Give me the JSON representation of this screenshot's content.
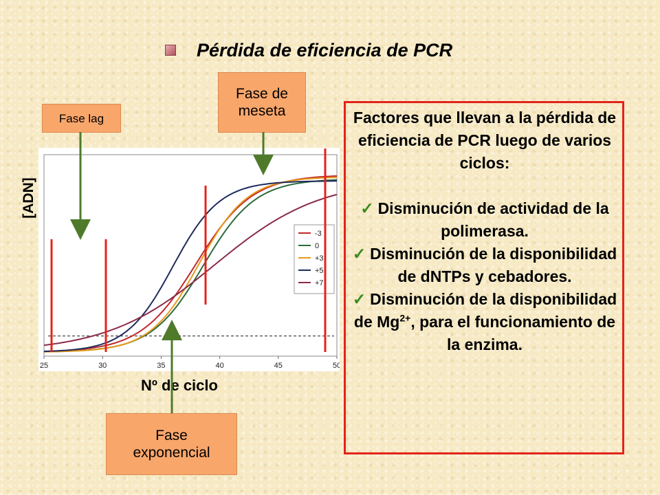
{
  "slide": {
    "title": "Pérdida de eficiencia de PCR",
    "callouts": {
      "lag": "Fase lag",
      "meseta_1": "Fase de",
      "meseta_2": "meseta",
      "exponencial_1": "Fase",
      "exponencial_2": "exponencial"
    },
    "y_axis_label": "[ADN]",
    "x_axis_label": "Nº de ciclo",
    "box": {
      "heading": "Factores que llevan a la pérdida de eficiencia de PCR luego de varios ciclos:",
      "items": [
        {
          "text": "Disminución de actividad de la polimerasa."
        },
        {
          "text": "Disminución de la disponibilidad de  dNTPs y cebadores."
        },
        {
          "text_before_sup": "Disminución de la disponibilidad de Mg",
          "sup": "2+",
          "text_after_sup": ", para el funcionamiento de la enzima."
        }
      ]
    },
    "colors": {
      "callout": "#f9a66b",
      "box_border": "#e3231b",
      "arrow": "#4e7a2a",
      "check": "#3a8a1e"
    }
  },
  "chart_data": {
    "type": "line",
    "x_ticks": [
      "25",
      "30",
      "35",
      "40",
      "45",
      "50"
    ],
    "xlim": [
      25,
      50
    ],
    "ylim": [
      0,
      1
    ],
    "threshold": 0.1,
    "legend_placement": "right",
    "series": [
      {
        "name": "-3",
        "color": "#c0282a",
        "midpoint": 38.0,
        "slope": 0.42,
        "top": 0.9
      },
      {
        "name": "0",
        "color": "#2e6b3a",
        "midpoint": 38.6,
        "slope": 0.45,
        "top": 0.88
      },
      {
        "name": "+3",
        "color": "#e69a1c",
        "midpoint": 38.2,
        "slope": 0.48,
        "top": 0.89
      },
      {
        "name": "+5",
        "color": "#1e2a5a",
        "midpoint": 36.0,
        "slope": 0.5,
        "top": 0.87
      },
      {
        "name": "+7",
        "color": "#8a2a48",
        "midpoint": 39.5,
        "slope": 0.22,
        "top": 0.88
      }
    ],
    "marker_lines_x": [
      26,
      30.5
    ]
  }
}
